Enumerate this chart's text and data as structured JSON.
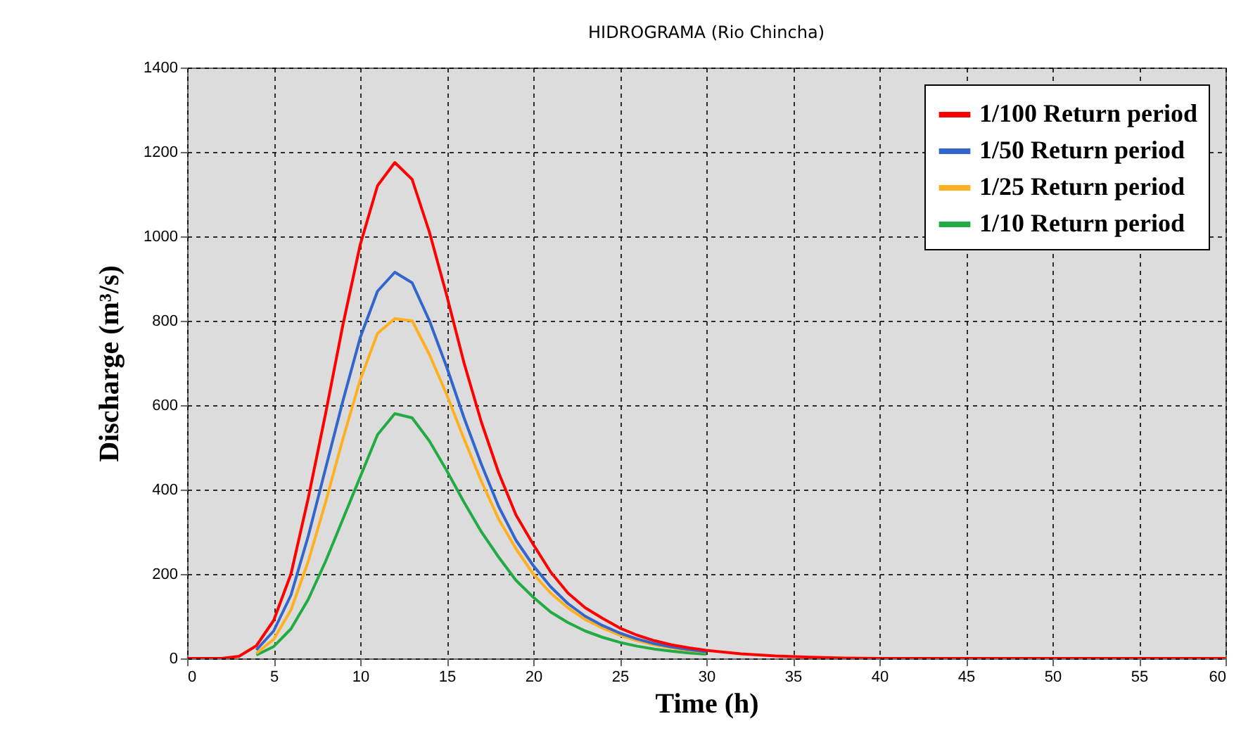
{
  "chart_data": {
    "type": "line",
    "title": "HIDROGRAMA (Rio Chincha)",
    "xlabel": "Time (h)",
    "ylabel": "Discharge (m³/s)",
    "x": [
      0,
      1,
      2,
      3,
      4,
      5,
      6,
      7,
      8,
      9,
      10,
      11,
      12,
      13,
      14,
      15,
      16,
      17,
      18,
      19,
      20,
      21,
      22,
      23,
      24,
      25,
      26,
      27,
      28,
      29,
      30,
      32,
      34,
      36,
      38,
      40,
      60
    ],
    "series": [
      {
        "name": "1/100 Return period",
        "color": "#ff0000",
        "values": [
          0,
          0,
          0,
          5,
          30,
          90,
          200,
          380,
          580,
          790,
          980,
          1120,
          1175,
          1135,
          1010,
          860,
          700,
          560,
          440,
          340,
          270,
          205,
          155,
          120,
          95,
          72,
          55,
          42,
          32,
          25,
          19,
          11,
          6,
          3,
          1,
          0,
          0
        ]
      },
      {
        "name": "1/50 Return period",
        "color": "#3366cc",
        "values": [
          null,
          null,
          null,
          null,
          20,
          65,
          150,
          290,
          450,
          610,
          760,
          870,
          915,
          890,
          800,
          690,
          570,
          460,
          360,
          280,
          220,
          170,
          130,
          100,
          78,
          60,
          46,
          35,
          27,
          21,
          16,
          null,
          null,
          null,
          null,
          null,
          null
        ]
      },
      {
        "name": "1/25 Return period",
        "color": "#ffb020",
        "values": [
          null,
          null,
          null,
          null,
          12,
          45,
          115,
          230,
          370,
          520,
          660,
          770,
          805,
          800,
          720,
          625,
          520,
          420,
          330,
          260,
          200,
          155,
          120,
          92,
          72,
          55,
          42,
          32,
          25,
          19,
          15,
          null,
          null,
          null,
          null,
          null,
          null
        ]
      },
      {
        "name": "1/10 Return period",
        "color": "#22aa44",
        "values": [
          null,
          null,
          null,
          null,
          8,
          28,
          70,
          140,
          230,
          330,
          430,
          530,
          580,
          570,
          515,
          445,
          370,
          300,
          240,
          185,
          145,
          110,
          85,
          65,
          50,
          38,
          29,
          22,
          17,
          13,
          10,
          null,
          null,
          null,
          null,
          null,
          null
        ]
      }
    ],
    "xlim": [
      0,
      60
    ],
    "xticks": [
      0,
      5,
      10,
      15,
      20,
      25,
      30,
      35,
      40,
      45,
      50,
      55,
      60
    ],
    "ylim": [
      0,
      1400
    ],
    "yticks": [
      0,
      200,
      400,
      600,
      800,
      1000,
      1200,
      1400
    ],
    "grid": true,
    "legend": "top right",
    "marker": "none",
    "line_style": "solid"
  }
}
